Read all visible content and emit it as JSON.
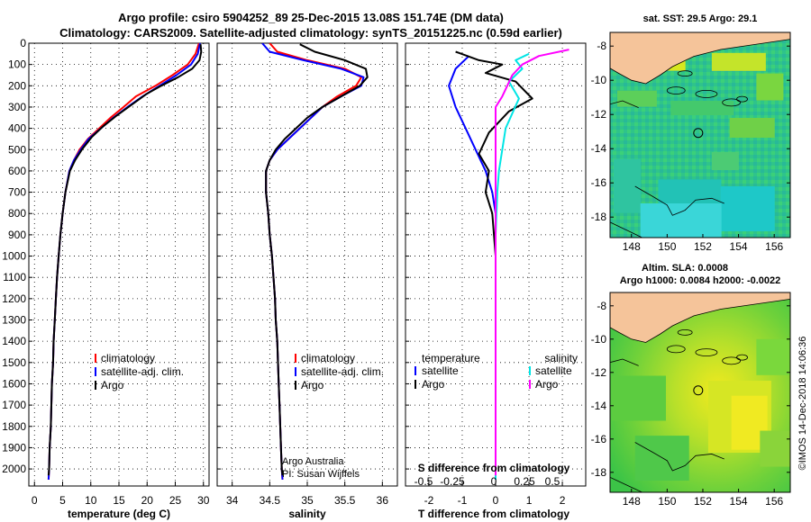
{
  "title_line1": "Argo profile: csiro 5904252_89 25-Dec-2015 13.08S 151.74E (DM data)",
  "title_line2": "Climatology: CARS2009. Satellite-adjusted climatology: synTS_20151225.nc (0.59d earlier)",
  "credit": "Argo Australia",
  "pi": "PI: Susan Wijffels",
  "timestamp": "©IMOS 14-Dec-2018 14:06:36",
  "colors": {
    "climatology": "#ff0000",
    "satellite": "#0000ff",
    "argo": "#000000",
    "sat_salinity": "#00e5e5",
    "argo_salinity": "#ff00ff",
    "land": "#f5c49a"
  },
  "chart_data": [
    {
      "type": "line",
      "name": "temperature",
      "xlabel": "temperature (deg C)",
      "ylabel": "",
      "xlim": [
        -1,
        31
      ],
      "ylim": [
        2080,
        0
      ],
      "xticks": [
        0,
        5,
        10,
        15,
        20,
        25,
        30
      ],
      "yticks": [
        0,
        100,
        200,
        300,
        400,
        500,
        600,
        700,
        800,
        900,
        1000,
        1100,
        1200,
        1300,
        1400,
        1500,
        1600,
        1700,
        1800,
        1900,
        2000
      ],
      "legend": [
        "climatology",
        "satellite-adj. clim.",
        "Argo"
      ],
      "series": [
        {
          "name": "climatology",
          "color": "#ff0000",
          "points": [
            [
              29.2,
              0
            ],
            [
              28.6,
              50
            ],
            [
              27.2,
              100
            ],
            [
              24.5,
              150
            ],
            [
              21.5,
              200
            ],
            [
              18,
              250
            ],
            [
              15.8,
              300
            ],
            [
              13.5,
              350
            ],
            [
              11.5,
              400
            ],
            [
              9.5,
              450
            ],
            [
              8,
              500
            ],
            [
              7,
              550
            ],
            [
              6.2,
              600
            ],
            [
              5.5,
              700
            ],
            [
              5,
              800
            ],
            [
              4.6,
              900
            ],
            [
              4.3,
              1000
            ],
            [
              4,
              1100
            ],
            [
              3.8,
              1200
            ],
            [
              3.6,
              1300
            ],
            [
              3.4,
              1400
            ],
            [
              3.3,
              1500
            ],
            [
              3.1,
              1600
            ],
            [
              3,
              1700
            ],
            [
              2.9,
              1800
            ],
            [
              2.7,
              1900
            ],
            [
              2.6,
              2000
            ],
            [
              2.5,
              2050
            ]
          ]
        },
        {
          "name": "satellite-adj. clim.",
          "color": "#0000ff",
          "points": [
            [
              29.4,
              0
            ],
            [
              29,
              50
            ],
            [
              27.8,
              100
            ],
            [
              25.2,
              150
            ],
            [
              22.2,
              200
            ],
            [
              19.2,
              250
            ],
            [
              16.5,
              300
            ],
            [
              14,
              350
            ],
            [
              11.8,
              400
            ],
            [
              9.6,
              450
            ],
            [
              8.2,
              500
            ],
            [
              7,
              550
            ],
            [
              6.2,
              600
            ],
            [
              5.5,
              700
            ],
            [
              5,
              800
            ],
            [
              4.6,
              900
            ],
            [
              4.3,
              1000
            ],
            [
              4,
              1100
            ],
            [
              3.8,
              1200
            ],
            [
              3.6,
              1300
            ],
            [
              3.4,
              1400
            ],
            [
              3.3,
              1500
            ],
            [
              3.1,
              1600
            ],
            [
              3,
              1700
            ],
            [
              2.9,
              1800
            ],
            [
              2.7,
              1900
            ],
            [
              2.6,
              2000
            ],
            [
              2.5,
              2050
            ]
          ]
        },
        {
          "name": "Argo",
          "color": "#000000",
          "points": [
            [
              29.5,
              5
            ],
            [
              29.6,
              40
            ],
            [
              29.3,
              80
            ],
            [
              28,
              120
            ],
            [
              25.5,
              160
            ],
            [
              22.5,
              200
            ],
            [
              19.8,
              240
            ],
            [
              17.2,
              290
            ],
            [
              14.6,
              340
            ],
            [
              12.2,
              390
            ],
            [
              10.2,
              440
            ],
            [
              8.4,
              500
            ],
            [
              7.2,
              550
            ],
            [
              6.3,
              600
            ],
            [
              5.5,
              700
            ],
            [
              5,
              800
            ],
            [
              4.6,
              900
            ],
            [
              4.3,
              1000
            ],
            [
              4,
              1100
            ],
            [
              3.8,
              1200
            ],
            [
              3.6,
              1300
            ],
            [
              3.4,
              1400
            ],
            [
              3.3,
              1500
            ],
            [
              3.1,
              1600
            ],
            [
              3,
              1700
            ],
            [
              2.9,
              1800
            ],
            [
              2.7,
              1900
            ],
            [
              2.6,
              2000
            ],
            [
              2.5,
              2030
            ]
          ]
        }
      ]
    },
    {
      "type": "line",
      "name": "salinity",
      "xlabel": "salinity",
      "xlim": [
        33.8,
        36.2
      ],
      "ylim": [
        2080,
        0
      ],
      "xticks": [
        34,
        34.5,
        35,
        35.5,
        36
      ],
      "legend": [
        "climatology",
        "satellite-adj. clim.",
        "Argo"
      ],
      "series": [
        {
          "name": "climatology",
          "color": "#ff0000",
          "points": [
            [
              34.5,
              0
            ],
            [
              34.6,
              40
            ],
            [
              35,
              80
            ],
            [
              35.5,
              120
            ],
            [
              35.72,
              160
            ],
            [
              35.65,
              200
            ],
            [
              35.4,
              250
            ],
            [
              35.2,
              300
            ],
            [
              35.05,
              350
            ],
            [
              34.9,
              400
            ],
            [
              34.75,
              450
            ],
            [
              34.6,
              500
            ],
            [
              34.5,
              550
            ],
            [
              34.45,
              600
            ],
            [
              34.45,
              700
            ],
            [
              34.48,
              800
            ],
            [
              34.5,
              900
            ],
            [
              34.53,
              1000
            ],
            [
              34.55,
              1100
            ],
            [
              34.57,
              1200
            ],
            [
              34.58,
              1300
            ],
            [
              34.6,
              1400
            ],
            [
              34.61,
              1500
            ],
            [
              34.62,
              1600
            ],
            [
              34.63,
              1700
            ],
            [
              34.64,
              1800
            ],
            [
              34.65,
              1900
            ],
            [
              34.66,
              2000
            ],
            [
              34.67,
              2050
            ]
          ]
        },
        {
          "name": "satellite-adj. clim.",
          "color": "#0000ff",
          "points": [
            [
              34.4,
              0
            ],
            [
              34.5,
              40
            ],
            [
              34.95,
              80
            ],
            [
              35.45,
              120
            ],
            [
              35.75,
              160
            ],
            [
              35.72,
              200
            ],
            [
              35.45,
              250
            ],
            [
              35.2,
              300
            ],
            [
              35.05,
              350
            ],
            [
              34.9,
              400
            ],
            [
              34.75,
              450
            ],
            [
              34.6,
              500
            ],
            [
              34.5,
              550
            ],
            [
              34.45,
              600
            ],
            [
              34.45,
              700
            ],
            [
              34.48,
              800
            ],
            [
              34.5,
              900
            ],
            [
              34.53,
              1000
            ],
            [
              34.55,
              1100
            ],
            [
              34.57,
              1200
            ],
            [
              34.58,
              1300
            ],
            [
              34.6,
              1400
            ],
            [
              34.61,
              1500
            ],
            [
              34.62,
              1600
            ],
            [
              34.63,
              1700
            ],
            [
              34.64,
              1800
            ],
            [
              34.65,
              1900
            ],
            [
              34.66,
              2000
            ],
            [
              34.67,
              2050
            ]
          ]
        },
        {
          "name": "Argo",
          "color": "#000000",
          "points": [
            [
              34.9,
              5
            ],
            [
              35.1,
              40
            ],
            [
              35.5,
              80
            ],
            [
              35.78,
              120
            ],
            [
              35.8,
              160
            ],
            [
              35.7,
              200
            ],
            [
              35.45,
              250
            ],
            [
              35.2,
              300
            ],
            [
              35.0,
              350
            ],
            [
              34.85,
              400
            ],
            [
              34.7,
              450
            ],
            [
              34.58,
              500
            ],
            [
              34.5,
              550
            ],
            [
              34.45,
              600
            ],
            [
              34.45,
              700
            ],
            [
              34.48,
              800
            ],
            [
              34.5,
              900
            ],
            [
              34.53,
              1000
            ],
            [
              34.55,
              1100
            ],
            [
              34.57,
              1200
            ],
            [
              34.58,
              1300
            ],
            [
              34.6,
              1400
            ],
            [
              34.61,
              1500
            ],
            [
              34.62,
              1600
            ],
            [
              34.63,
              1700
            ],
            [
              34.64,
              1800
            ],
            [
              34.65,
              1900
            ],
            [
              34.66,
              2000
            ],
            [
              34.67,
              2030
            ]
          ]
        }
      ]
    },
    {
      "type": "line",
      "name": "difference",
      "xlabel": "T difference from climatology",
      "xlim": [
        -2.7,
        2.7
      ],
      "ylim": [
        2080,
        0
      ],
      "xticks": [
        -2,
        -1,
        0,
        1,
        2
      ],
      "s_axis_label": "S difference from climatology",
      "s_ticks": [
        "-0.5",
        "-0.25",
        "0",
        "0.25",
        "0.5"
      ],
      "legend_titles": [
        "temperature",
        "salinity"
      ],
      "legend_left": [
        "satellite",
        "Argo"
      ],
      "legend_right": [
        "satellite",
        "Argo"
      ],
      "series": [
        {
          "name": "T satellite",
          "color": "#0000ff",
          "points": [
            [
              -0.8,
              60
            ],
            [
              -1.2,
              120
            ],
            [
              -1.4,
              200
            ],
            [
              -1.2,
              300
            ],
            [
              -0.9,
              400
            ],
            [
              -0.6,
              500
            ],
            [
              -0.3,
              600
            ],
            [
              -0.1,
              700
            ],
            [
              0,
              800
            ],
            [
              0,
              1000
            ],
            [
              0,
              1500
            ],
            [
              0,
              2050
            ]
          ]
        },
        {
          "name": "T Argo",
          "color": "#000000",
          "points": [
            [
              -1.2,
              40
            ],
            [
              -0.5,
              80
            ],
            [
              0.2,
              100
            ],
            [
              -0.3,
              140
            ],
            [
              0.6,
              180
            ],
            [
              1.1,
              260
            ],
            [
              0.4,
              320
            ],
            [
              -0.2,
              420
            ],
            [
              -0.5,
              520
            ],
            [
              -0.2,
              600
            ],
            [
              -0.3,
              700
            ],
            [
              -0.1,
              800
            ],
            [
              0,
              1000
            ],
            [
              0,
              1500
            ],
            [
              0,
              2030
            ]
          ]
        },
        {
          "name": "S satellite",
          "color": "#00e5e5",
          "points": [
            [
              1.0,
              50
            ],
            [
              0.6,
              80
            ],
            [
              0.8,
              120
            ],
            [
              0.4,
              180
            ],
            [
              0.7,
              260
            ],
            [
              0.3,
              400
            ],
            [
              0.1,
              600
            ],
            [
              0.05,
              700
            ],
            [
              0,
              900
            ],
            [
              0,
              1500
            ],
            [
              0,
              2050
            ]
          ]
        },
        {
          "name": "S Argo",
          "color": "#ff00ff",
          "points": [
            [
              2.2,
              30
            ],
            [
              1.3,
              60
            ],
            [
              0.8,
              100
            ],
            [
              0.5,
              150
            ],
            [
              0.2,
              250
            ],
            [
              0,
              300
            ],
            [
              0,
              1500
            ],
            [
              0,
              2030
            ]
          ]
        }
      ]
    },
    {
      "type": "heatmap",
      "name": "sat_sst_map",
      "title": "sat. SST: 29.5 Argo: 29.1",
      "xticks": [
        "148",
        "150",
        "152",
        "154",
        "156"
      ],
      "yticks": [
        "-8",
        "-10",
        "-12",
        "-14",
        "-16",
        "-18"
      ],
      "xlim": [
        146.8,
        156.9
      ],
      "ylim": [
        -19.2,
        -7.2
      ],
      "profile_lon": 151.74,
      "profile_lat": -13.08
    },
    {
      "type": "heatmap",
      "name": "altim_sla_map",
      "title1": "Altim. SLA: 0.0008",
      "title2": "Argo h1000: 0.0084 h2000: -0.0022",
      "xticks": [
        "148",
        "150",
        "152",
        "154",
        "156"
      ],
      "yticks": [
        "-8",
        "-10",
        "-12",
        "-14",
        "-16",
        "-18"
      ],
      "xlim": [
        146.8,
        156.9
      ],
      "ylim": [
        -19.2,
        -7.2
      ],
      "profile_lon": 151.74,
      "profile_lat": -13.08
    }
  ]
}
